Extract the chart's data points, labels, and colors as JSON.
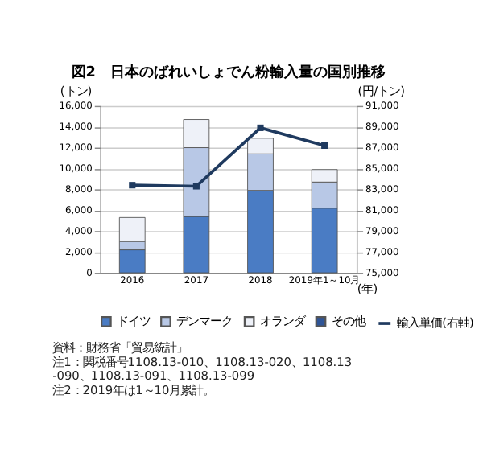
{
  "chart_data": {
    "type": "bar",
    "title": "図2　日本のばれいしょでん粉輸入量の国別推移",
    "categories": [
      "2016",
      "2017",
      "2018",
      "2019年1～10月"
    ],
    "xlabel": "(年)",
    "ylabel": "(トン)",
    "y2label": "(円/トン)",
    "stacked": true,
    "grid": "y",
    "legend": "bottom",
    "series": [
      {
        "name": "ドイツ",
        "color": "#4a7cc4",
        "values": [
          2200,
          5400,
          7900,
          6200
        ]
      },
      {
        "name": "デンマーク",
        "color": "#b8c8e6",
        "values": [
          800,
          6600,
          3500,
          2500
        ]
      },
      {
        "name": "オランダ",
        "color": "#eef1f8",
        "values": [
          2300,
          2700,
          1500,
          1200
        ]
      },
      {
        "name": "その他",
        "color": "#2f5597",
        "values": [
          null,
          null,
          null,
          null
        ]
      },
      {
        "name": "輸入単価(右軸)",
        "type": "line",
        "axis": "y2",
        "color": "#1f3a5f",
        "marker": "square",
        "values": [
          83400,
          83300,
          88900,
          87200
        ]
      }
    ],
    "ylim": [
      0,
      16000
    ],
    "yticks": [
      0,
      {
        "value": 2000,
        "label": "2,000"
      },
      {
        "value": 4000,
        "label": "4,000"
      },
      {
        "value": 6000,
        "label": "6,000"
      },
      {
        "value": 8000,
        "label": "8,000"
      },
      {
        "value": 10000,
        "label": "10,000"
      },
      {
        "value": 12000,
        "label": "12,000"
      },
      {
        "value": 14000,
        "label": "14,000"
      },
      {
        "value": 16000,
        "label": "16,000"
      }
    ],
    "y2lim": [
      75000,
      91000
    ],
    "y2ticks": [
      {
        "value": 75000,
        "label": "75,000"
      },
      {
        "value": 77000,
        "label": "77,000"
      },
      {
        "value": 79000,
        "label": "79,000"
      },
      {
        "value": 81000,
        "label": "81,000"
      },
      {
        "value": 83000,
        "label": "83,000"
      },
      {
        "value": 85000,
        "label": "85,000"
      },
      {
        "value": 87000,
        "label": "87,000"
      },
      {
        "value": 89000,
        "label": "89,000"
      },
      {
        "value": 91000,
        "label": "91,000"
      }
    ],
    "annotations": [
      "資料：財務省「貿易統計」",
      "注1：関税番号1108.13-010、1108.13-020、1108.13-090、1108.13-091、1108.13-099",
      "注2：2019年は1～10月累計。"
    ]
  }
}
